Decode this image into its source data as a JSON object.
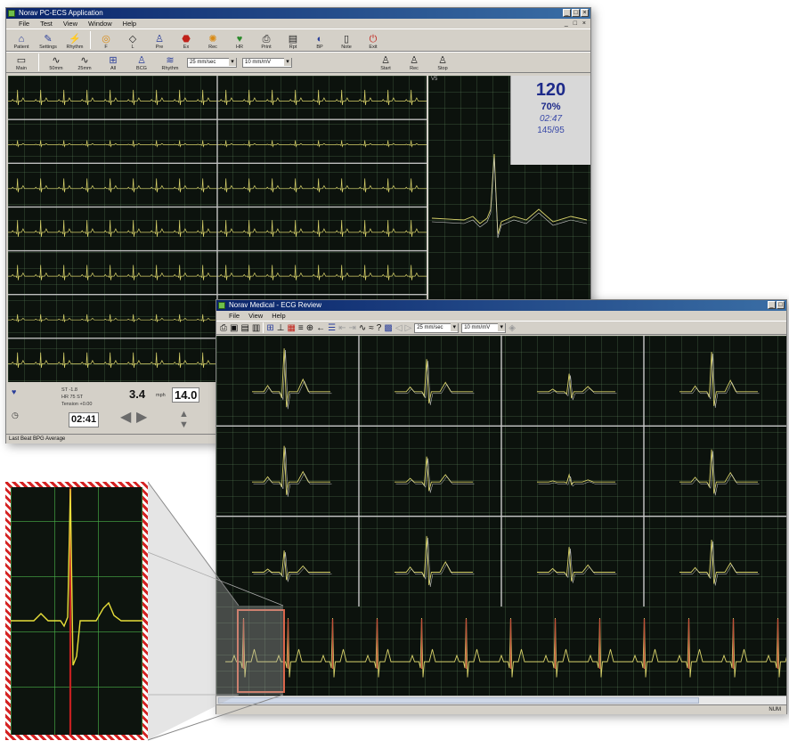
{
  "back_window": {
    "title": "Norav PC-ECS Application",
    "menu": [
      "File",
      "Test",
      "View",
      "Window",
      "Help"
    ],
    "toolbar": [
      {
        "icon": "patient-icon",
        "label": "Patient"
      },
      {
        "icon": "settings-icon",
        "label": "Settings"
      },
      {
        "icon": "rhythm-icon",
        "label": "Rhythm"
      },
      {
        "icon": "filter-icon",
        "label": "F"
      },
      {
        "icon": "lead-icon",
        "label": "L"
      },
      {
        "icon": "person-icon",
        "label": "Pre"
      },
      {
        "icon": "stop-icon",
        "label": "Ex"
      },
      {
        "icon": "clock-icon",
        "label": "Rec"
      },
      {
        "icon": "hr-icon",
        "label": "HR"
      },
      {
        "icon": "print-icon",
        "label": "Print"
      },
      {
        "icon": "report-icon",
        "label": "Rpt"
      },
      {
        "icon": "bp-icon",
        "label": "BP"
      },
      {
        "icon": "note-icon",
        "label": "Note"
      },
      {
        "icon": "exit-icon",
        "label": "Exit"
      }
    ],
    "subtoolbar": {
      "buttons": [
        "Main",
        "50mm",
        "25mm",
        "All",
        "BCG",
        "Rhythm"
      ],
      "select1": "25 mm/sec",
      "select2": "10 mm/mV",
      "right_buttons": [
        "Start",
        "Rec",
        "Stop"
      ]
    },
    "vitals": {
      "heart_rate": "120",
      "spo2": "70%",
      "elapsed": "02:47",
      "blood_pressure": "145/95"
    },
    "controls": {
      "speed_value": "3.4",
      "grade_value": "14.0",
      "time_value": "02:41",
      "speed_unit": "mph",
      "info_line1": "ST -1.8",
      "info_line2": "HR 75 ST",
      "info_line3": "Tension +0.00"
    },
    "status_text": "Last Beat BPG Average"
  },
  "front_window": {
    "title": "Norav Medical - ECG Review",
    "menu": [
      "File",
      "View",
      "Help"
    ],
    "select1": "25 mm/sec",
    "select2": "10 mm/mV",
    "status_right": "NUM"
  }
}
